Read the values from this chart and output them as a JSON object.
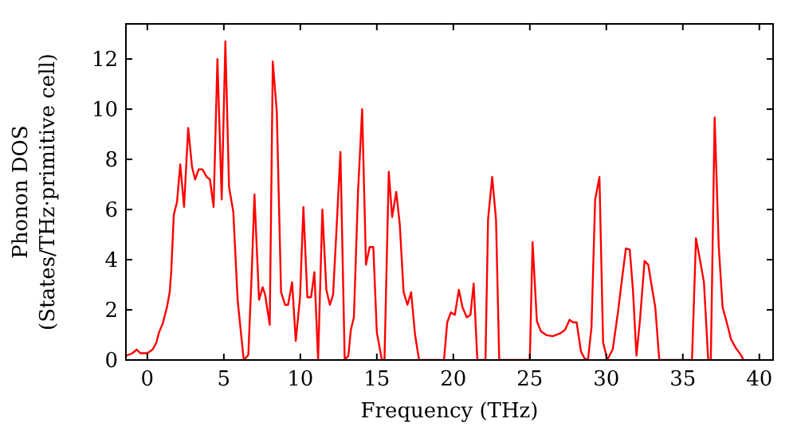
{
  "chart_data": {
    "type": "line",
    "xlabel": "Frequency (THz)",
    "ylabel": "Phonon DOS\n(States/THz·primitive cell)",
    "xlim": [
      -1.4,
      40.9
    ],
    "ylim": [
      0,
      13.4
    ],
    "xticks": [
      0,
      5,
      10,
      15,
      20,
      25,
      30,
      35,
      40
    ],
    "yticks": [
      0,
      2,
      4,
      6,
      8,
      10,
      12
    ],
    "grid": false,
    "marker": "none",
    "line_style": "solid",
    "series": [
      {
        "color": "#ff0000",
        "x": [
          -1.39,
          -0.97,
          -0.7,
          -0.46,
          0,
          0.35,
          0.59,
          0.76,
          1.0,
          1.28,
          1.46,
          1.56,
          1.73,
          1.94,
          2.15,
          2.4,
          2.67,
          2.92,
          3.12,
          3.36,
          3.6,
          3.88,
          4.09,
          4.33,
          4.58,
          4.86,
          5.1,
          5.34,
          5.62,
          5.9,
          6.3,
          6.6,
          6.83,
          7.0,
          7.3,
          7.54,
          7.7,
          8.0,
          8.2,
          8.46,
          8.74,
          9.0,
          9.2,
          9.46,
          9.7,
          9.98,
          10.2,
          10.46,
          10.7,
          10.92,
          11.16,
          11.44,
          11.7,
          11.93,
          12.14,
          12.38,
          12.62,
          12.9,
          13.14,
          13.3,
          13.5,
          13.77,
          14.04,
          14.29,
          14.53,
          14.77,
          15.0,
          15.33,
          15.5,
          15.78,
          16.0,
          16.27,
          16.5,
          16.75,
          17.0,
          17.24,
          17.5,
          17.76,
          19.39,
          19.6,
          19.84,
          20.1,
          20.36,
          20.6,
          20.88,
          21.12,
          21.33,
          21.57,
          22.1,
          22.27,
          22.54,
          22.79,
          23.0,
          25.0,
          25.18,
          25.46,
          25.73,
          26.08,
          26.5,
          26.95,
          27.3,
          27.6,
          27.82,
          28.06,
          28.34,
          28.58,
          28.8,
          29.03,
          29.27,
          29.55,
          29.79,
          30.07,
          30.42,
          30.76,
          31.04,
          31.28,
          31.53,
          31.74,
          31.97,
          32.2,
          32.5,
          32.74,
          32.95,
          33.2,
          33.46,
          35.6,
          35.86,
          36.13,
          36.38,
          36.66,
          36.83,
          37.08,
          37.35,
          37.6,
          37.87,
          38.15,
          38.43,
          38.74,
          38.98
        ],
        "values": [
          0.17,
          0.27,
          0.42,
          0.27,
          0.27,
          0.42,
          0.69,
          1.1,
          1.44,
          2.1,
          2.7,
          3.5,
          5.8,
          6.3,
          7.8,
          6.1,
          9.25,
          7.7,
          7.2,
          7.6,
          7.6,
          7.3,
          7.2,
          6.1,
          12.0,
          6.4,
          12.7,
          6.9,
          5.9,
          2.4,
          0,
          0.2,
          3.6,
          6.6,
          2.4,
          2.9,
          2.6,
          1.4,
          11.9,
          9.9,
          2.7,
          2.2,
          2.2,
          3.1,
          0.76,
          2.5,
          6.1,
          2.5,
          2.5,
          3.5,
          0,
          6.0,
          2.8,
          2.2,
          2.6,
          5.4,
          8.3,
          0,
          0.17,
          1.2,
          1.7,
          6.7,
          10.0,
          3.8,
          4.5,
          4.5,
          1.1,
          0,
          0,
          7.5,
          5.7,
          6.7,
          5.4,
          2.7,
          2.2,
          2.7,
          1.0,
          0,
          0,
          1.5,
          1.9,
          1.8,
          2.8,
          2.1,
          1.7,
          1.8,
          3.05,
          0,
          0,
          5.6,
          7.3,
          5.6,
          0,
          0,
          4.7,
          1.55,
          1.14,
          0.99,
          0.95,
          1.05,
          1.2,
          1.6,
          1.5,
          1.5,
          0.34,
          0.06,
          0,
          1.3,
          6.4,
          7.3,
          0.7,
          0,
          0.43,
          1.9,
          3.3,
          4.45,
          4.4,
          2.8,
          0.17,
          1.6,
          3.95,
          3.8,
          3.0,
          2.1,
          0,
          0,
          4.85,
          3.96,
          3.1,
          0,
          0,
          9.67,
          4.5,
          2.1,
          1.5,
          0.83,
          0.51,
          0.25,
          0
        ]
      }
    ]
  }
}
